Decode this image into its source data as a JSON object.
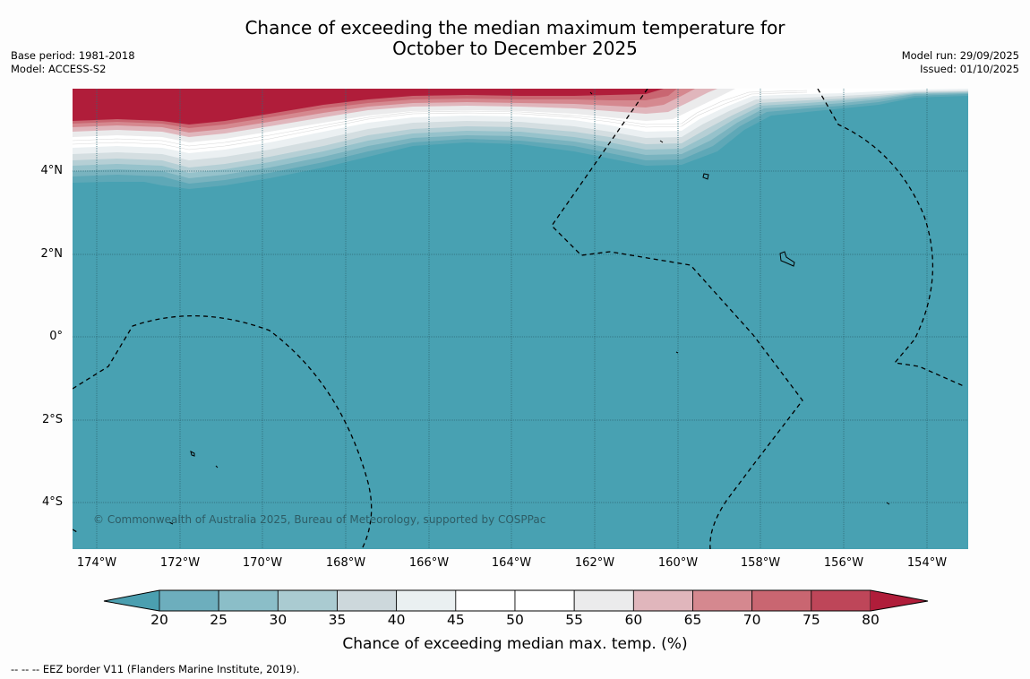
{
  "header": {
    "title_line1": "Chance of exceeding the median maximum temperature for",
    "title_line2": "October to December 2025",
    "base_period": "Base period: 1981-2018",
    "model": "Model: ACCESS-S2",
    "model_run": "Model run: 29/09/2025",
    "issued": "Issued: 01/10/2025"
  },
  "map": {
    "lat_labels": [
      "4°N",
      "2°N",
      "0°",
      "2°S",
      "4°S"
    ],
    "lon_labels": [
      "174°W",
      "172°W",
      "170°W",
      "168°W",
      "166°W",
      "164°W",
      "162°W",
      "160°W",
      "158°W",
      "156°W",
      "154°W"
    ],
    "copyright": "© Commonwealth of Australia 2025, Bureau of Meteorology, supported by COSPPac",
    "base_color": "#48a1b2",
    "land_and_borders": "islands and EEZ boundaries"
  },
  "colorbar": {
    "label": "Chance of exceeding median max. temp. (%)",
    "ticks": [
      "20",
      "25",
      "30",
      "35",
      "40",
      "45",
      "50",
      "55",
      "60",
      "65",
      "70",
      "75",
      "80"
    ],
    "colors": [
      "#4b9fb0",
      "#6daebd",
      "#8bbec8",
      "#aacbd1",
      "#cdd8dc",
      "#eaf0f1",
      "#ffffff",
      "#ffffff",
      "#ebebec",
      "#e0b6bc",
      "#d5888f",
      "#c96671",
      "#be4659",
      "#b01d3a"
    ]
  },
  "footer": {
    "legend_note": "--  --  -- EEZ border V11 (Flanders Marine Institute, 2019)."
  }
}
